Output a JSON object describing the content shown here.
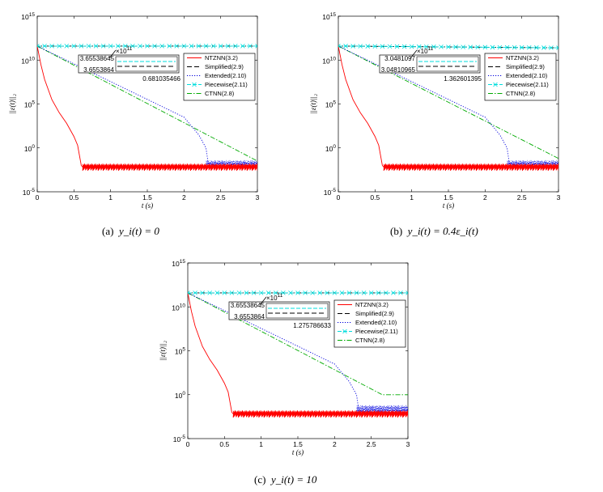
{
  "chart_data": [
    {
      "id": "a",
      "type": "line",
      "caption": "(a)  y_i(t) = 0",
      "caption_prefix": "(a)",
      "caption_math": "y_i(t) = 0",
      "xlabel": "t (s)",
      "ylabel": "||ε(t)||₂",
      "yscale": "log",
      "xlim": [
        0,
        3
      ],
      "ylim_exp": [
        -5,
        15
      ],
      "xticks": [
        "0",
        "0.5",
        "1",
        "1.5",
        "2",
        "2.5",
        "3"
      ],
      "yticks": [
        "10^-5",
        "10^0",
        "10^5",
        "10^10",
        "10^15"
      ],
      "inset": {
        "exponent_label": "×10^11",
        "upper_value": "3.65538645",
        "lower_value": "3.6553864",
        "time_label": "0.681035466"
      },
      "series": [
        {
          "name": "NTZNN(3.2)",
          "color": "#ff0000",
          "dash": "solid",
          "marker": "",
          "x": [
            0,
            0.05,
            0.1,
            0.2,
            0.3,
            0.4,
            0.5,
            0.55,
            0.6,
            0.62,
            3.0
          ],
          "log10_y": [
            11.6,
            9.5,
            7.8,
            5.5,
            4.0,
            2.8,
            1.3,
            0.3,
            -2.0,
            -2.2,
            -2.2
          ],
          "band_log10": [
            -2.6,
            -1.8
          ]
        },
        {
          "name": "Simplified(2.9)",
          "color": "#000000",
          "dash": "6,3",
          "marker": "",
          "x": [
            0,
            3
          ],
          "log10_y": [
            11.6,
            11.6
          ]
        },
        {
          "name": "Extended(2.10)",
          "color": "#0000dd",
          "dash": "1.2,1.8",
          "marker": "",
          "x": [
            0,
            2.0,
            2.2,
            2.3,
            2.33,
            3.0
          ],
          "log10_y": [
            11.6,
            3.5,
            1.5,
            0,
            -1.8,
            -1.8
          ],
          "band_log10": [
            -2.4,
            -1.4
          ],
          "band_from": 2.3
        },
        {
          "name": "Piecewise(2.11)",
          "color": "#00dddd",
          "dash": "5,2",
          "marker": "x",
          "x": [
            0,
            3
          ],
          "log10_y": [
            11.6,
            11.6
          ]
        },
        {
          "name": "CTNN(2.8)",
          "color": "#00aa00",
          "dash": "6,2,1.5,2",
          "marker": "",
          "x": [
            0,
            3
          ],
          "log10_y": [
            11.6,
            -1.5
          ]
        }
      ]
    },
    {
      "id": "b",
      "type": "line",
      "caption": "(b)  y_i(t) = 0.4ε_i(t)",
      "caption_prefix": "(b)",
      "caption_math": "y_i(t) = 0.4ε_i(t)",
      "xlabel": "t (s)",
      "ylabel": "||ε(t)||₂",
      "yscale": "log",
      "xlim": [
        0,
        3
      ],
      "ylim_exp": [
        -5,
        15
      ],
      "xticks": [
        "0",
        "0.5",
        "1",
        "1.5",
        "2",
        "2.5",
        "3"
      ],
      "yticks": [
        "10^-5",
        "10^0",
        "10^5",
        "10^10",
        "10^15"
      ],
      "inset": {
        "exponent_label": "×10^11",
        "upper_value": "3.0481097",
        "lower_value": "3.04810965",
        "time_label": "1.362601395"
      },
      "series": [
        {
          "name": "NTZNN(3.2)",
          "color": "#ff0000",
          "dash": "solid",
          "marker": "",
          "x": [
            0,
            0.05,
            0.1,
            0.2,
            0.3,
            0.4,
            0.5,
            0.55,
            0.6,
            0.62,
            3.0
          ],
          "log10_y": [
            11.6,
            9.5,
            7.8,
            5.5,
            4.0,
            2.8,
            1.3,
            0.3,
            -2.0,
            -2.2,
            -2.2
          ],
          "band_log10": [
            -2.6,
            -1.8
          ]
        },
        {
          "name": "Simplified(2.9)",
          "color": "#000000",
          "dash": "6,3",
          "marker": "",
          "x": [
            0,
            3
          ],
          "log10_y": [
            11.6,
            11.4
          ]
        },
        {
          "name": "Extended(2.10)",
          "color": "#0000dd",
          "dash": "1.2,1.8",
          "marker": "",
          "x": [
            0,
            2.0,
            2.2,
            2.3,
            2.33,
            3.0
          ],
          "log10_y": [
            11.6,
            3.5,
            1.5,
            0,
            -1.8,
            -1.8
          ],
          "band_log10": [
            -2.4,
            -1.4
          ],
          "band_from": 2.3
        },
        {
          "name": "Piecewise(2.11)",
          "color": "#00dddd",
          "dash": "5,2",
          "marker": "x",
          "x": [
            0,
            3
          ],
          "log10_y": [
            11.6,
            11.4
          ]
        },
        {
          "name": "CTNN(2.8)",
          "color": "#00aa00",
          "dash": "6,2,1.5,2",
          "marker": "",
          "x": [
            0,
            3
          ],
          "log10_y": [
            11.6,
            -1.2
          ]
        }
      ]
    },
    {
      "id": "c",
      "type": "line",
      "caption": "(c)  y_i(t) = 10",
      "caption_prefix": "(c)",
      "caption_math": "y_i(t) = 10",
      "xlabel": "t (s)",
      "ylabel": "||ε(t)||₂",
      "yscale": "log",
      "xlim": [
        0,
        3
      ],
      "ylim_exp": [
        -5,
        15
      ],
      "xticks": [
        "0",
        "0.5",
        "1",
        "1.5",
        "2",
        "2.5",
        "3"
      ],
      "yticks": [
        "10^-5",
        "10^0",
        "10^5",
        "10^10",
        "10^15"
      ],
      "inset": {
        "exponent_label": "×10^11",
        "upper_value": "3.65538645",
        "lower_value": "3.6553864",
        "time_label": "1.275786633"
      },
      "series": [
        {
          "name": "NTZNN(3.2)",
          "color": "#ff0000",
          "dash": "solid",
          "marker": "",
          "x": [
            0,
            0.05,
            0.1,
            0.2,
            0.3,
            0.4,
            0.5,
            0.55,
            0.6,
            0.62,
            3.0
          ],
          "log10_y": [
            11.6,
            9.5,
            7.8,
            5.5,
            4.0,
            2.8,
            1.3,
            0.3,
            -2.0,
            -2.2,
            -2.2
          ],
          "band_log10": [
            -2.6,
            -1.8
          ]
        },
        {
          "name": "Simplified(2.9)",
          "color": "#000000",
          "dash": "6,3",
          "marker": "",
          "x": [
            0,
            3
          ],
          "log10_y": [
            11.6,
            11.6
          ]
        },
        {
          "name": "Extended(2.10)",
          "color": "#0000dd",
          "dash": "1.2,1.8",
          "marker": "",
          "x": [
            0,
            2.0,
            2.2,
            2.3,
            2.33,
            3.0
          ],
          "log10_y": [
            11.6,
            3.5,
            1.5,
            0,
            -1.8,
            -1.8
          ],
          "band_log10": [
            -2.4,
            -1.2
          ],
          "band_from": 2.3
        },
        {
          "name": "Piecewise(2.11)",
          "color": "#00dddd",
          "dash": "5,2",
          "marker": "x",
          "x": [
            0,
            3
          ],
          "log10_y": [
            11.6,
            11.6
          ]
        },
        {
          "name": "CTNN(2.8)",
          "color": "#00aa00",
          "dash": "6,2,1.5,2",
          "marker": "",
          "x": [
            0,
            2.65,
            3.0
          ],
          "log10_y": [
            11.6,
            0,
            0
          ]
        }
      ]
    }
  ]
}
